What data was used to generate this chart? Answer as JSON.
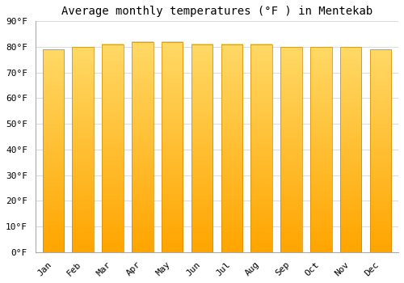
{
  "title": "Average monthly temperatures (°F ) in Mentekab",
  "months": [
    "Jan",
    "Feb",
    "Mar",
    "Apr",
    "May",
    "Jun",
    "Jul",
    "Aug",
    "Sep",
    "Oct",
    "Nov",
    "Dec"
  ],
  "values": [
    79,
    80,
    81,
    82,
    82,
    81,
    81,
    81,
    80,
    80,
    80,
    79
  ],
  "bar_color_top": "#FFA500",
  "bar_color_bottom": "#FFD966",
  "ylim": [
    0,
    90
  ],
  "yticks": [
    0,
    10,
    20,
    30,
    40,
    50,
    60,
    70,
    80,
    90
  ],
  "ytick_labels": [
    "0°F",
    "10°F",
    "20°F",
    "30°F",
    "40°F",
    "50°F",
    "60°F",
    "70°F",
    "80°F",
    "90°F"
  ],
  "background_color": "#ffffff",
  "grid_color": "#dddddd",
  "title_fontsize": 10,
  "tick_fontsize": 8,
  "bar_edge_color": "#CC8800",
  "bar_width": 0.72
}
